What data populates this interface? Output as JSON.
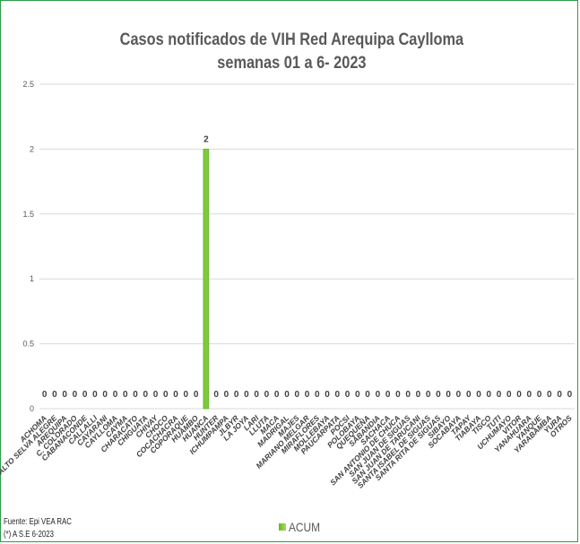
{
  "chart_data": {
    "type": "bar",
    "title_line1": "Casos notificados de VIH Red Arequipa Caylloma",
    "title_line2": "semanas 01 a 6- 2023",
    "categories": [
      "ACHOMA",
      "ALTO SELVA ALEGRE",
      "AREQUIPA",
      "C. COLORADO",
      "CABANACONDE",
      "CALLALLI",
      "CAYARANI",
      "CAYLLOMA",
      "CAYMA",
      "CHARACATO",
      "CHIGUATA",
      "CHIVAY",
      "CHOCO",
      "COCACHACRA",
      "COPORAQUE",
      "HUAMBO",
      "HUANCA",
      "HUNTER",
      "ICHUMPAMPA",
      "JLBYR",
      "LA JOYA",
      "LARI",
      "LLUTA",
      "MACA",
      "MADRIGAL",
      "MAJES",
      "MARIANO MELGAR",
      "MIRAFLORES",
      "MOLLEBAYA",
      "PAUCARPATA",
      "POCSI",
      "POLOBAYA",
      "QUEQUEÑA",
      "SABANDIA",
      "SACHACA",
      "SAN ANTONIO DE CHUCA",
      "SAN JUAN DE SIGUAS",
      "SAN JUAN DE TARUCANI",
      "SANTA ISABEL DE SIGUAS",
      "SANTA RITA DE SIGUAS",
      "SIBAYO",
      "SOCABAYA",
      "TAPAY",
      "TIABAYA",
      "TISCO",
      "TUTI",
      "UCHUMAYO",
      "VITOR",
      "YANAHUARA",
      "YANQUE",
      "YARABAMBA",
      "YURA",
      "OTROS"
    ],
    "series": [
      {
        "name": "ACUM",
        "values": [
          0,
          0,
          0,
          0,
          0,
          0,
          0,
          0,
          0,
          0,
          0,
          0,
          0,
          0,
          0,
          0,
          2,
          0,
          0,
          0,
          0,
          0,
          0,
          0,
          0,
          0,
          0,
          0,
          0,
          0,
          0,
          0,
          0,
          0,
          0,
          0,
          0,
          0,
          0,
          0,
          0,
          0,
          0,
          0,
          0,
          0,
          0,
          0,
          0,
          0,
          0,
          0,
          0
        ]
      }
    ],
    "ylim": [
      0,
      2.5
    ],
    "yticks": [
      "0",
      "0.5",
      "1",
      "1.5",
      "2",
      "2.5"
    ],
    "grid": true,
    "legend_position": "bottom",
    "bar_color": "#7ccb3a"
  },
  "footer": {
    "source_line1": "Fuente:  Epi VEA RAC",
    "source_line2": "(*) A S.E 6-2023"
  }
}
